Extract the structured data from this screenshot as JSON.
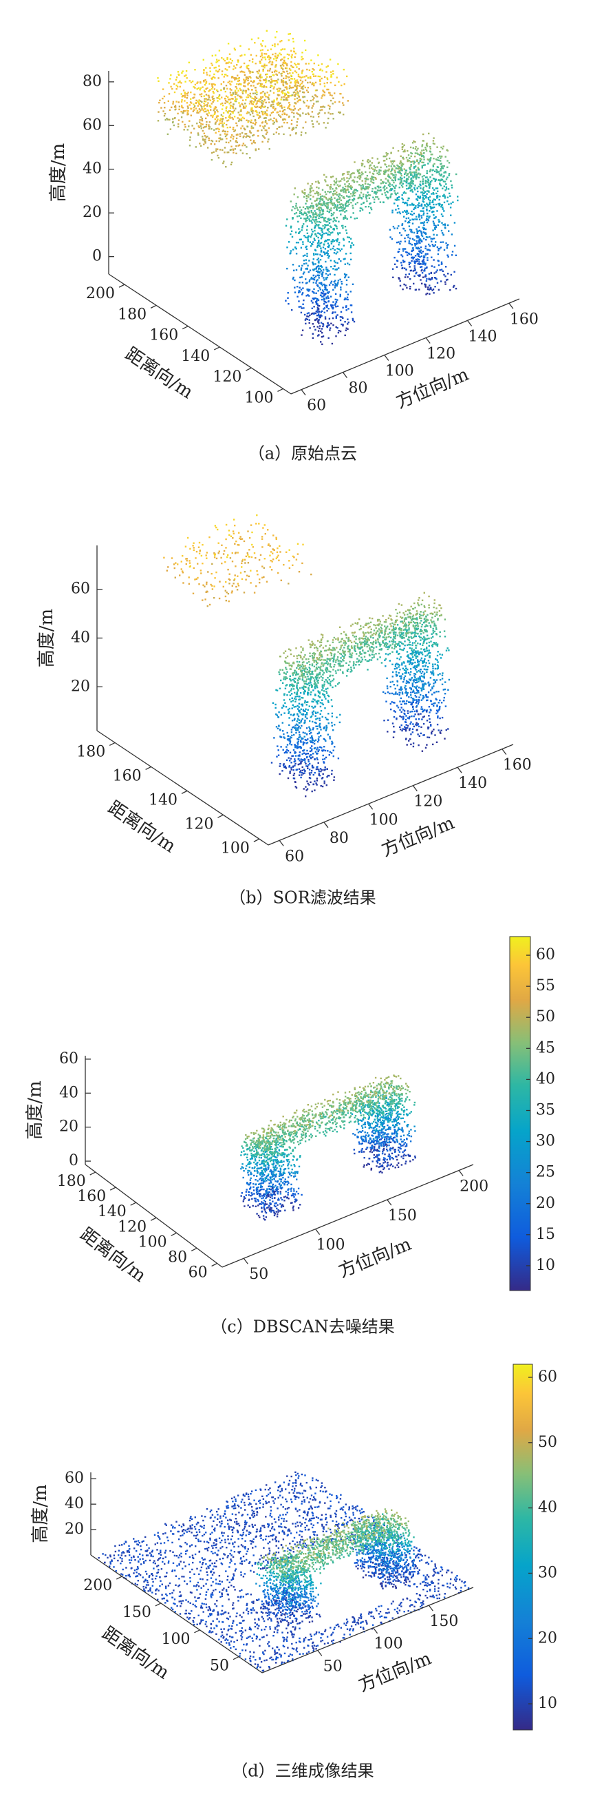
{
  "chart_data": [
    {
      "type": "scatter3d",
      "caption": "（a）原始点云",
      "x_label": "方位向/m",
      "y_label": "距离向/m",
      "z_label": "高度/m",
      "xlim": [
        55,
        165
      ],
      "ylim": [
        95,
        210
      ],
      "zlim": [
        -8,
        85
      ],
      "xticks": [
        60,
        80,
        100,
        120,
        140,
        160
      ],
      "yticks": [
        100,
        120,
        140,
        160,
        180,
        200
      ],
      "zticks": [
        0,
        20,
        40,
        60,
        80
      ]
    },
    {
      "type": "scatter3d",
      "caption": "（b）SOR滤波结果",
      "x_label": "方位向/m",
      "y_label": "距离向/m",
      "z_label": "高度/m",
      "xlim": [
        55,
        165
      ],
      "ylim": [
        95,
        190
      ],
      "zlim": [
        2,
        78
      ],
      "xticks": [
        60,
        80,
        100,
        120,
        140,
        160
      ],
      "yticks": [
        100,
        120,
        140,
        160,
        180
      ],
      "zticks": [
        20,
        40,
        60
      ]
    },
    {
      "type": "scatter3d",
      "caption": "（c）DBSCAN去噪结果",
      "x_label": "方位向/m",
      "y_label": "距离向/m",
      "z_label": "高度/m",
      "xlim": [
        35,
        210
      ],
      "ylim": [
        55,
        190
      ],
      "zlim": [
        -2,
        62
      ],
      "xticks": [
        50,
        100,
        150,
        200
      ],
      "yticks": [
        60,
        80,
        100,
        120,
        140,
        160,
        180
      ],
      "zticks": [
        0,
        20,
        40,
        60
      ],
      "colorbar": {
        "clim": [
          6,
          63
        ],
        "ticks": [
          10,
          15,
          20,
          25,
          30,
          35,
          40,
          45,
          50,
          55,
          60
        ]
      }
    },
    {
      "type": "scatter3d",
      "caption": "（d）三维成像结果",
      "x_label": "方位向/m",
      "y_label": "距离向/m",
      "z_label": "高度/m",
      "xlim": [
        0,
        190
      ],
      "ylim": [
        20,
        240
      ],
      "zlim": [
        0,
        65
      ],
      "xticks": [
        50,
        100,
        150
      ],
      "yticks": [
        50,
        100,
        150,
        200
      ],
      "zticks": [
        20,
        40,
        60
      ],
      "colorbar": {
        "clim": [
          6,
          62
        ],
        "ticks": [
          10,
          20,
          30,
          40,
          50,
          60
        ]
      }
    }
  ]
}
